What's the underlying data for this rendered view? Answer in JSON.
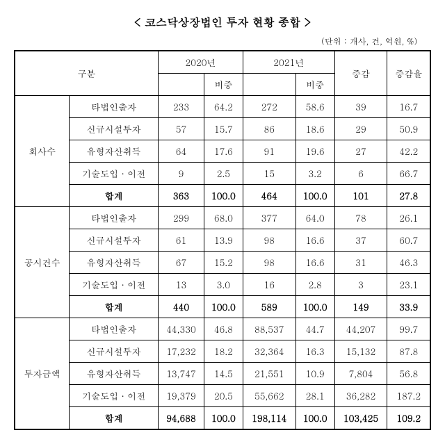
{
  "title": "< 코스닥상장법인 투자 현황 종합 >",
  "unit": "(단위 : 개사, 건, 억원, %)",
  "headers": {
    "category": "구분",
    "y2020": "2020년",
    "y2021": "2021년",
    "ratio": "비중",
    "change": "증감",
    "changeRate": "증감율"
  },
  "groups": [
    {
      "name": "회사수",
      "rows": [
        {
          "label": "타법인출자",
          "v2020": "233",
          "r2020": "64.2",
          "v2021": "272",
          "r2021": "58.6",
          "chg": "39",
          "chgRate": "16.7"
        },
        {
          "label": "신규시설투자",
          "v2020": "57",
          "r2020": "15.7",
          "v2021": "86",
          "r2021": "18.6",
          "chg": "29",
          "chgRate": "50.9"
        },
        {
          "label": "유형자산취득",
          "v2020": "64",
          "r2020": "17.6",
          "v2021": "91",
          "r2021": "19.6",
          "chg": "27",
          "chgRate": "42.2"
        },
        {
          "label": "기술도입 · 이전",
          "v2020": "9",
          "r2020": "2.5",
          "v2021": "15",
          "r2021": "3.2",
          "chg": "6",
          "chgRate": "66.7"
        }
      ],
      "total": {
        "label": "합계",
        "v2020": "363",
        "r2020": "100.0",
        "v2021": "464",
        "r2021": "100.0",
        "chg": "101",
        "chgRate": "27.8"
      }
    },
    {
      "name": "공시건수",
      "rows": [
        {
          "label": "타법인출자",
          "v2020": "299",
          "r2020": "68.0",
          "v2021": "377",
          "r2021": "64.0",
          "chg": "78",
          "chgRate": "26.1"
        },
        {
          "label": "신규시설투자",
          "v2020": "61",
          "r2020": "13.9",
          "v2021": "98",
          "r2021": "16.6",
          "chg": "37",
          "chgRate": "60.7"
        },
        {
          "label": "유형자산취득",
          "v2020": "67",
          "r2020": "15.2",
          "v2021": "98",
          "r2021": "16.6",
          "chg": "31",
          "chgRate": "46.3"
        },
        {
          "label": "기술도입 · 이전",
          "v2020": "13",
          "r2020": "3.0",
          "v2021": "16",
          "r2021": "2.8",
          "chg": "3",
          "chgRate": "23.1"
        }
      ],
      "total": {
        "label": "합계",
        "v2020": "440",
        "r2020": "100.0",
        "v2021": "589",
        "r2021": "100.0",
        "chg": "149",
        "chgRate": "33.9"
      }
    },
    {
      "name": "투자금액",
      "rows": [
        {
          "label": "타법인출자",
          "v2020": "44,330",
          "r2020": "46.8",
          "v2021": "88,537",
          "r2021": "44.7",
          "chg": "44,207",
          "chgRate": "99.7"
        },
        {
          "label": "신규시설투자",
          "v2020": "17,232",
          "r2020": "18.2",
          "v2021": "32,364",
          "r2021": "16.3",
          "chg": "15,132",
          "chgRate": "87.8"
        },
        {
          "label": "유형자산취득",
          "v2020": "13,747",
          "r2020": "14.5",
          "v2021": "21,551",
          "r2021": "10.9",
          "chg": "7,804",
          "chgRate": "56.8"
        },
        {
          "label": "기술도입 · 이전",
          "v2020": "19,379",
          "r2020": "20.5",
          "v2021": "55,662",
          "r2021": "28.1",
          "chg": "36,282",
          "chgRate": "187.2"
        }
      ],
      "total": {
        "label": "합계",
        "v2020": "94,688",
        "r2020": "100.0",
        "v2021": "198,114",
        "r2021": "100.0",
        "chg": "103,425",
        "chgRate": "109.2"
      }
    }
  ]
}
